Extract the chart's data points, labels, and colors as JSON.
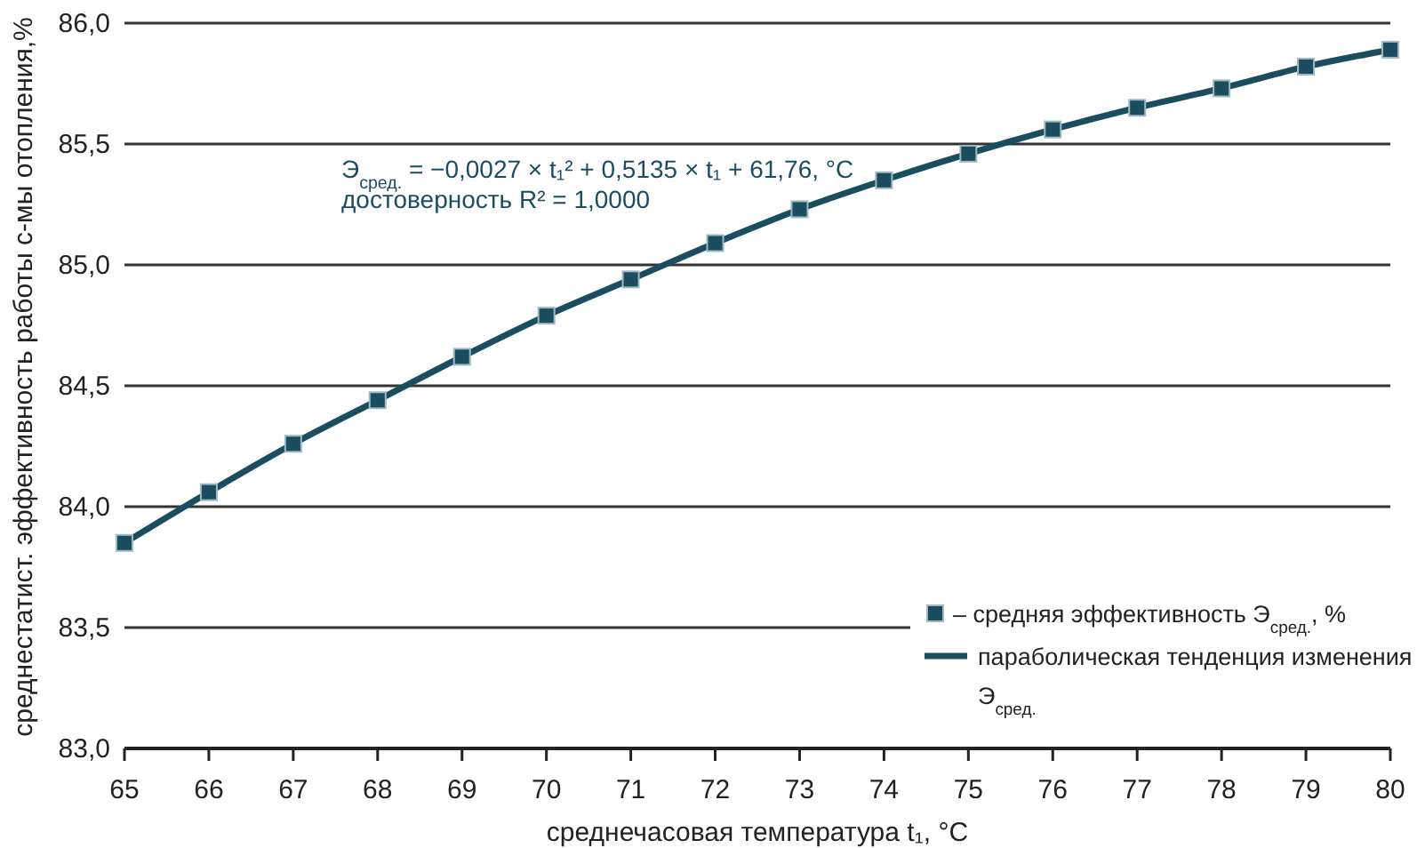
{
  "chart_data": {
    "type": "line",
    "xlabel": "среднечасовая температура t₁, °C",
    "ylabel": "среднестатист. эффективность работы с-мы отопления,%",
    "x": [
      65,
      66,
      67,
      68,
      69,
      70,
      71,
      72,
      73,
      74,
      75,
      76,
      77,
      78,
      79,
      80
    ],
    "series": [
      {
        "name": "– средняя эффективность Э$_{сред.}$, %",
        "type": "scatter",
        "color": "#1b4d61",
        "marker": "square",
        "values": [
          83.85,
          84.06,
          84.26,
          84.44,
          84.62,
          84.79,
          84.94,
          85.09,
          85.23,
          85.35,
          85.46,
          85.56,
          85.65,
          85.73,
          85.82,
          85.89
        ]
      },
      {
        "name": "параболическая тенденция изменения Э$_{сред.}$",
        "type": "line",
        "color": "#1b4d61",
        "line_style": "solid",
        "values": [
          83.85,
          84.06,
          84.26,
          84.44,
          84.62,
          84.79,
          84.94,
          85.09,
          85.23,
          85.35,
          85.46,
          85.56,
          85.65,
          85.73,
          85.82,
          85.89
        ]
      }
    ],
    "annotations": [
      "Э$_{сред.}$ = −0,0027 × t₁² + 0,5135 × t₁ + 61,76, °C",
      "достоверность R² = 1,0000"
    ],
    "xlim": [
      65,
      80
    ],
    "xticks": [
      65,
      66,
      67,
      68,
      69,
      70,
      71,
      72,
      73,
      74,
      75,
      76,
      77,
      78,
      79,
      80
    ],
    "ylim": [
      83,
      86
    ],
    "yticks": [
      {
        "value": 83,
        "label": "83,0"
      },
      {
        "value": 83.5,
        "label": "83,5"
      },
      {
        "value": 84,
        "label": "84,0"
      },
      {
        "value": 84.5,
        "label": "84,5"
      },
      {
        "value": 85,
        "label": "85,0"
      },
      {
        "value": 85.5,
        "label": "85,5"
      },
      {
        "value": 86,
        "label": "86,0"
      }
    ],
    "grid": "y",
    "legend": "bottom right"
  }
}
